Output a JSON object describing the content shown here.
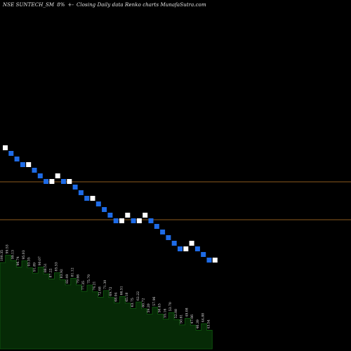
{
  "header": {
    "symbol": "NSE SUNTECH_SM",
    "change": "8%",
    "sign": "+-",
    "description": "Closing Daily data  Renko  charts MunafaSutra.com"
  },
  "colors": {
    "background": "#000000",
    "up_brick": "#ffffff",
    "down_brick": "#1e6be6",
    "level_line": "#8b5a1e",
    "volume_fill": "#062a06",
    "volume_stroke": "#0f5c0f",
    "volume_label": "#e0e0e0"
  },
  "chart_data": [
    {
      "type": "renko",
      "bricks": [
        {
          "direction": "up"
        },
        {
          "direction": "down"
        },
        {
          "direction": "down"
        },
        {
          "direction": "down"
        },
        {
          "direction": "up"
        },
        {
          "direction": "down"
        },
        {
          "direction": "down"
        },
        {
          "direction": "down"
        },
        {
          "direction": "up"
        },
        {
          "direction": "up"
        },
        {
          "direction": "down"
        },
        {
          "direction": "up"
        },
        {
          "direction": "down"
        },
        {
          "direction": "down"
        },
        {
          "direction": "down"
        },
        {
          "direction": "up"
        },
        {
          "direction": "down"
        },
        {
          "direction": "down"
        },
        {
          "direction": "down"
        },
        {
          "direction": "down"
        },
        {
          "direction": "up"
        },
        {
          "direction": "up"
        },
        {
          "direction": "down"
        },
        {
          "direction": "up"
        },
        {
          "direction": "up"
        },
        {
          "direction": "down"
        },
        {
          "direction": "down"
        },
        {
          "direction": "down"
        },
        {
          "direction": "down"
        },
        {
          "direction": "down"
        },
        {
          "direction": "down"
        },
        {
          "direction": "up"
        },
        {
          "direction": "up"
        },
        {
          "direction": "down"
        },
        {
          "direction": "down"
        },
        {
          "direction": "down"
        },
        {
          "direction": "up"
        }
      ],
      "level_lines": 2
    },
    {
      "type": "bar",
      "series": [
        {
          "values": [
            100.35,
            99.53,
            99.13,
            96.74,
            95.03,
            93.35,
            91.89,
            90.07,
            88.51,
            87.22,
            85.53,
            83.92,
            82.49,
            81.12,
            79.66,
            77.35,
            75.7,
            74.21,
            72.68,
            71.3,
            69.72,
            68.04,
            66.51,
            65.18,
            63.75,
            62.22,
            60.72,
            59.2,
            57.96,
            56.45,
            55.16,
            53.7,
            52.08,
            50.61,
            49.08,
            47.66,
            46.39,
            44.88,
            43.54
          ]
        }
      ],
      "labels": [
        "100.35",
        "99.53",
        "99.13",
        "96.74",
        "95.03",
        "93.35",
        "91.89",
        "90.07",
        "88.51",
        "87.22",
        "85.53",
        "83.92",
        "82.49",
        "81.12",
        "79.66",
        "77.35",
        "75.70",
        "74.21",
        "72.68",
        "71.30",
        "69.72",
        "68.04",
        "66.51",
        "65.18",
        "63.75",
        "62.22",
        "60.72",
        "59.20",
        "57.96",
        "56.45",
        "55.16",
        "53.70",
        "52.08",
        "50.61",
        "49.08",
        "47.66",
        "46.39",
        "44.88",
        "43.54"
      ]
    }
  ]
}
